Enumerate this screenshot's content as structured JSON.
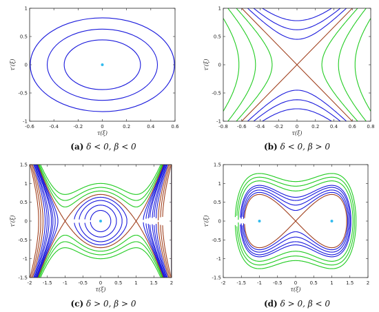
{
  "colors": {
    "orbit": "#1a1adc",
    "separatrix": "#a0401e",
    "outer": "#22cc22",
    "point": "#33bbee"
  },
  "chart_data": [
    {
      "type": "line",
      "caption": {
        "label": "(a)",
        "text": "δ < 0, β < 0"
      },
      "xlabel": "τ(ξ)",
      "ylabel": "τ′(ξ)",
      "xlim": [
        -0.6,
        0.6
      ],
      "ylim": [
        -1,
        1
      ],
      "xticks": [
        "-0.6",
        "-0.4",
        "-0.2",
        "0",
        "0.2",
        "0.4",
        "0.6"
      ],
      "yticks": [
        "-1",
        "-0.5",
        "0",
        "0.5",
        "1"
      ],
      "centers": [
        [
          0,
          0
        ]
      ],
      "ellipses": [
        {
          "rx": 0.315,
          "ry": 0.44
        },
        {
          "rx": 0.455,
          "ry": 0.63
        },
        {
          "rx": 0.595,
          "ry": 0.83
        }
      ]
    },
    {
      "type": "line",
      "caption": {
        "label": "(b)",
        "text": "δ < 0, β > 0"
      },
      "xlabel": "τ(ξ)",
      "ylabel": "τ′(ξ)",
      "xlim": [
        -0.8,
        0.8
      ],
      "ylim": [
        -1,
        1
      ],
      "xticks": [
        "-0.8",
        "-0.6",
        "-0.4",
        "-0.2",
        "0",
        "0.2",
        "0.4",
        "0.6",
        "0.8"
      ],
      "yticks": [
        "-1",
        "-0.5",
        "0",
        "0.5",
        "1"
      ],
      "saddle": [
        0,
        0
      ],
      "separatrix_slope": 1.667,
      "vertical_branches_y0": [
        0.45,
        0.62,
        0.78
      ],
      "horizontal_branches_x0": [
        0.27,
        0.45,
        0.63
      ]
    },
    {
      "type": "line",
      "caption": {
        "label": "(c)",
        "text": "δ > 0, β > 0"
      },
      "xlabel": "τ(ξ)",
      "ylabel": "τ′(ξ)",
      "xlim": [
        -2,
        2
      ],
      "ylim": [
        -1.5,
        1.5
      ],
      "xticks": [
        "-2",
        "-1.5",
        "-1",
        "-0.5",
        "0",
        "0.5",
        "1",
        "1.5",
        "2"
      ],
      "yticks": [
        "-1.5",
        "-1",
        "-0.5",
        "0",
        "0.5",
        "1",
        "1.5"
      ],
      "centers": [
        [
          0,
          0
        ]
      ],
      "saddles": [
        [
          -1,
          0
        ],
        [
          1,
          0
        ]
      ],
      "inner_levels": [
        0.04,
        0.09,
        0.15,
        0.2
      ],
      "outer_levels": [
        0.32,
        0.4,
        0.5
      ],
      "edge_levels": [
        -0.06,
        -0.15,
        -0.27,
        -0.42,
        -0.6,
        -0.8
      ]
    },
    {
      "type": "line",
      "caption": {
        "label": "(d)",
        "text": "δ > 0, β < 0"
      },
      "xlabel": "τ(ξ)",
      "ylabel": "τ′(ξ)",
      "xlim": [
        -2,
        2
      ],
      "ylim": [
        -1.5,
        1.5
      ],
      "xticks": [
        "-2",
        "-1.5",
        "-1",
        "-0.5",
        "0",
        "0.5",
        "1",
        "1.5",
        "2"
      ],
      "yticks": [
        "-1.5",
        "-1",
        "-0.5",
        "0",
        "0.5",
        "1",
        "1.5"
      ],
      "centers": [
        [
          -1,
          0
        ],
        [
          1,
          0
        ]
      ],
      "saddles": [
        [
          0,
          0
        ]
      ],
      "inner_levels": [
        0.04,
        0.09,
        0.15,
        0.2
      ],
      "outer_levels": [
        0.32,
        0.43,
        0.55
      ]
    }
  ]
}
